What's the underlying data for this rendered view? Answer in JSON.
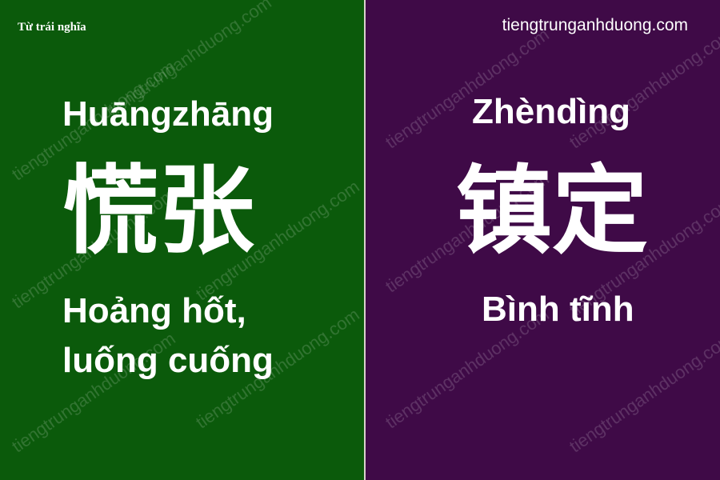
{
  "header": {
    "tag": "Từ trái nghĩa",
    "site": "tiengtrunganhduong.com"
  },
  "watermark_text": "tiengtrunganhduong.com",
  "left": {
    "pinyin": "Huāngzhāng",
    "hanzi": "慌张",
    "meaning_line1": "Hoảng hốt,",
    "meaning_line2": "luống cuống",
    "bg_color": "#0b5a0b"
  },
  "right": {
    "pinyin": "Zhèndìng",
    "hanzi": "镇定",
    "meaning": "Bình tĩnh",
    "bg_color": "#3f0a47"
  }
}
